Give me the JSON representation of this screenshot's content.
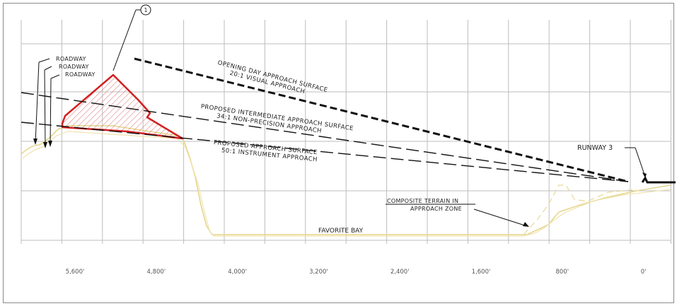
{
  "labels": {
    "roadway_1": "ROADWAY",
    "roadway_2": "ROADWAY",
    "roadway_3": "ROADWAY",
    "callout_number": "1",
    "opening_day_line1": "OPENING DAY APPROACH SURFACE",
    "opening_day_line2": "20:1 VISUAL APPROACH",
    "intermediate_line1": "PROPOSED INTERMEDIATE APPROACH SURFACE",
    "intermediate_line2": "34:1 NON-PRECISION APPROACH",
    "proposed_line1": "PROPOSED APPROACH SURFACE",
    "proposed_line2": "50:1 INSTRUMENT APPROACH",
    "runway": "RUNWAY 3",
    "terrain_line1": "COMPOSITE TERRAIN IN",
    "terrain_line2": "APPROACH ZONE",
    "water": "FAVORITE BAY"
  },
  "x_axis": {
    "ticks": [
      "5,600'",
      "4,800'",
      "4,000'",
      "3,200'",
      "2,400'",
      "1,600'",
      "800'",
      "0'"
    ]
  },
  "colors": {
    "grid": "#bdbdbd",
    "obstruction": "#d42020",
    "terrain": "#e3d38a",
    "surface": "#111111"
  }
}
